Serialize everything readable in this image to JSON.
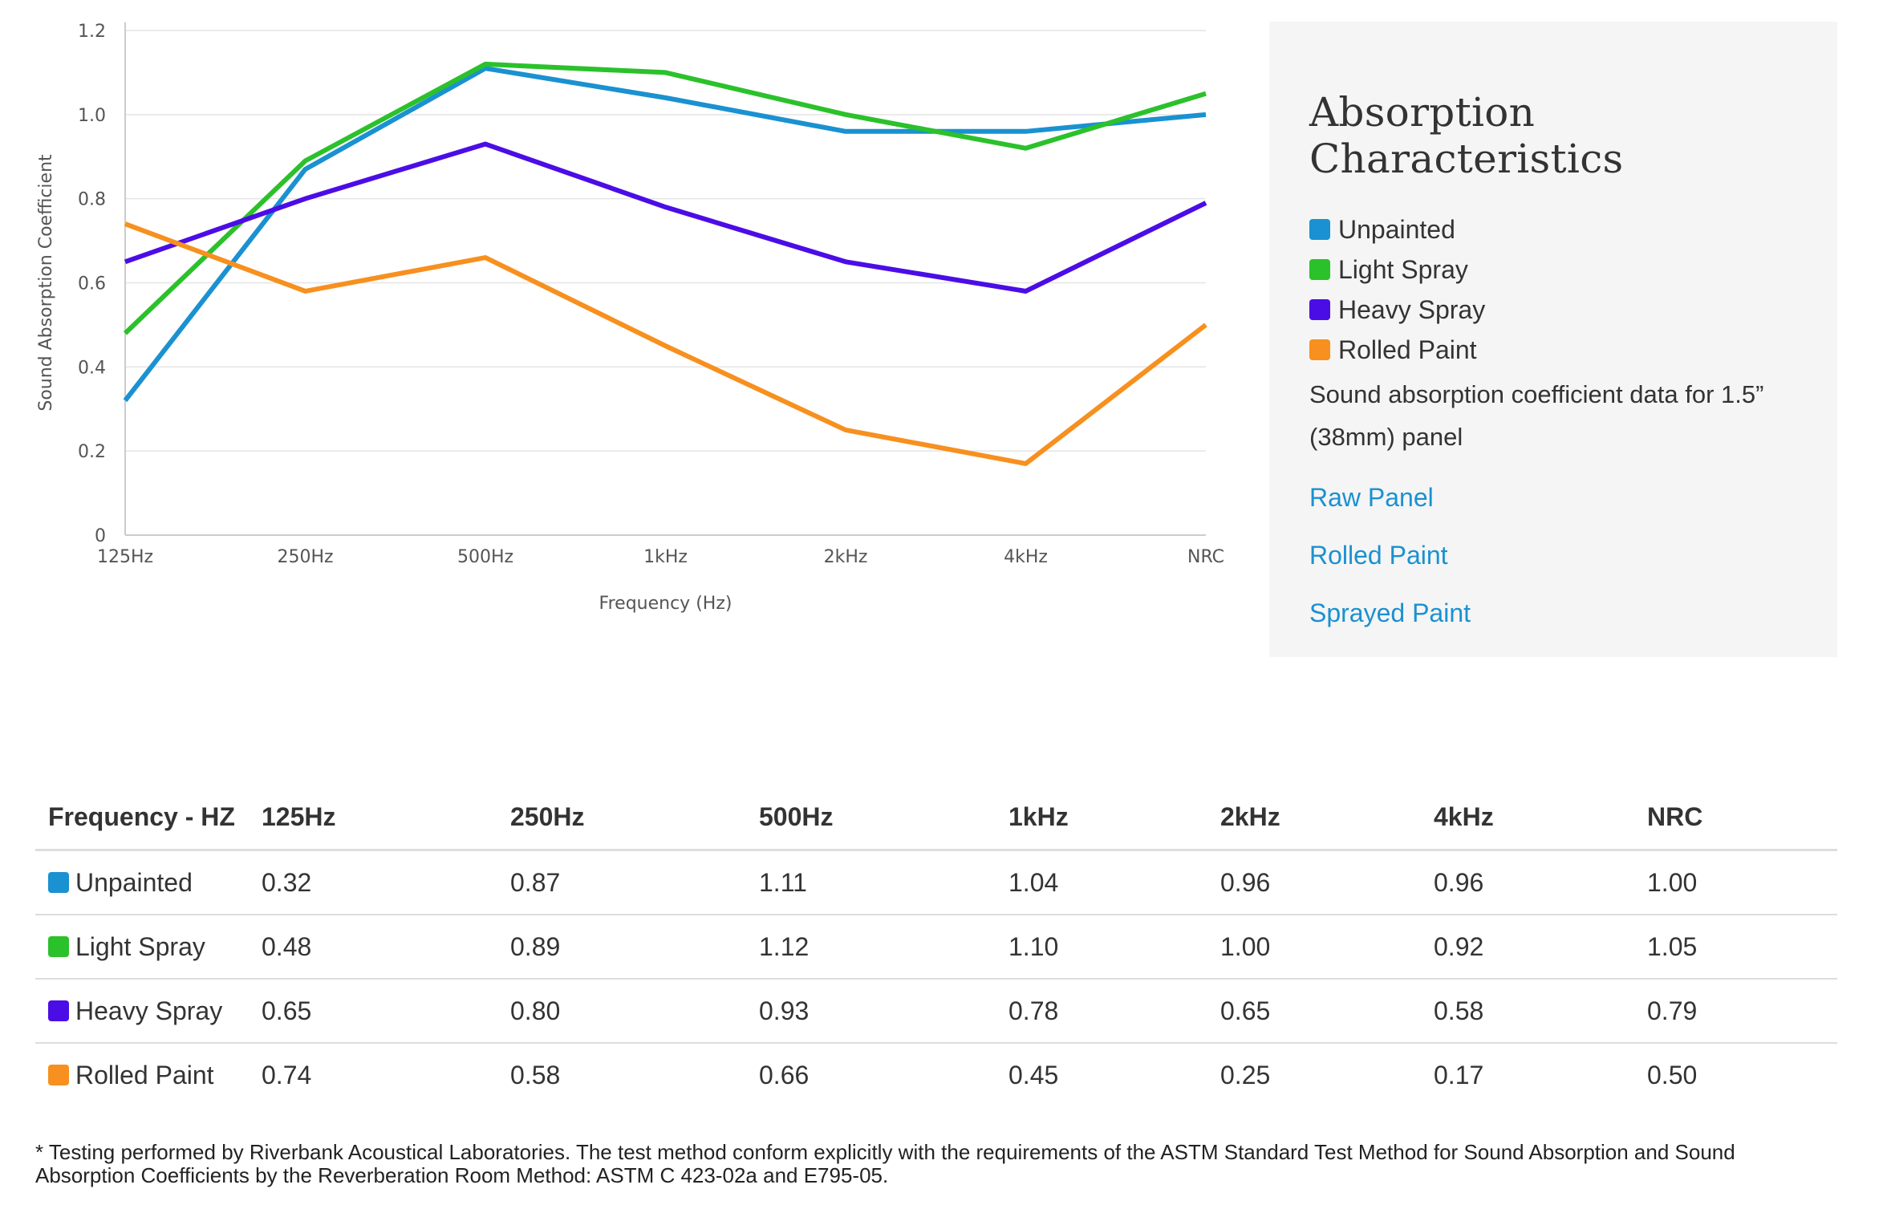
{
  "colors": {
    "unpainted": "#1a91d1",
    "light_spray": "#2bc12b",
    "heavy_spray": "#4b0de6",
    "rolled_paint": "#f7901e"
  },
  "chart_data": {
    "type": "line",
    "title": "",
    "xlabel": "Frequency (Hz)",
    "ylabel": "Sound Absorption Coefficient",
    "categories": [
      "125Hz",
      "250Hz",
      "500Hz",
      "1kHz",
      "2kHz",
      "4kHz",
      "NRC"
    ],
    "ylim": [
      0,
      1.2
    ],
    "yticks": [
      "0",
      "0.2",
      "0.4",
      "0.6",
      "0.8",
      "1.0",
      "1.2"
    ],
    "yticks_values": [
      0,
      0.2,
      0.4,
      0.6,
      0.8,
      1.0,
      1.2
    ],
    "grid": true,
    "legend": "right",
    "series": [
      {
        "name": "Unpainted",
        "color": "#1a91d1",
        "values": [
          0.32,
          0.87,
          1.11,
          1.04,
          0.96,
          0.96,
          1.0
        ]
      },
      {
        "name": "Light Spray",
        "color": "#2bc12b",
        "values": [
          0.48,
          0.89,
          1.12,
          1.1,
          1.0,
          0.92,
          1.05
        ]
      },
      {
        "name": "Heavy Spray",
        "color": "#4b0de6",
        "values": [
          0.65,
          0.8,
          0.93,
          0.78,
          0.65,
          0.58,
          0.79
        ]
      },
      {
        "name": "Rolled Paint",
        "color": "#f7901e",
        "values": [
          0.74,
          0.58,
          0.66,
          0.45,
          0.25,
          0.17,
          0.5
        ]
      }
    ]
  },
  "info": {
    "title": "Absorption Characteristics",
    "legend": [
      {
        "label": "Unpainted",
        "color": "#1a91d1"
      },
      {
        "label": "Light Spray",
        "color": "#2bc12b"
      },
      {
        "label": "Heavy Spray",
        "color": "#4b0de6"
      },
      {
        "label": "Rolled Paint",
        "color": "#f7901e"
      }
    ],
    "description": "Sound absorption coefficient data for 1.5” (38mm) panel",
    "links": [
      "Raw Panel",
      "Rolled Paint",
      "Sprayed Paint"
    ]
  },
  "table": {
    "headers": [
      "Frequency - HZ",
      "125Hz",
      "250Hz",
      "500Hz",
      "1kHz",
      "2kHz",
      "4kHz",
      "NRC"
    ],
    "rows": [
      {
        "label": "Unpainted",
        "color": "#1a91d1",
        "values": [
          "0.32",
          "0.87",
          "1.11",
          "1.04",
          "0.96",
          "0.96",
          "1.00"
        ]
      },
      {
        "label": "Light Spray",
        "color": "#2bc12b",
        "values": [
          "0.48",
          "0.89",
          "1.12",
          "1.10",
          "1.00",
          "0.92",
          "1.05"
        ]
      },
      {
        "label": "Heavy Spray",
        "color": "#4b0de6",
        "values": [
          "0.65",
          "0.80",
          "0.93",
          "0.78",
          "0.65",
          "0.58",
          "0.79"
        ]
      },
      {
        "label": "Rolled Paint",
        "color": "#f7901e",
        "values": [
          "0.74",
          "0.58",
          "0.66",
          "0.45",
          "0.25",
          "0.17",
          "0.50"
        ]
      }
    ]
  },
  "footnote": "* Testing performed by Riverbank Acoustical Laboratories. The test method conform explicitly with the requirements of the ASTM Standard Test Method for Sound Absorption and Sound Absorption Coefficients by the Reverberation Room Method: ASTM C 423-02a and E795-05."
}
